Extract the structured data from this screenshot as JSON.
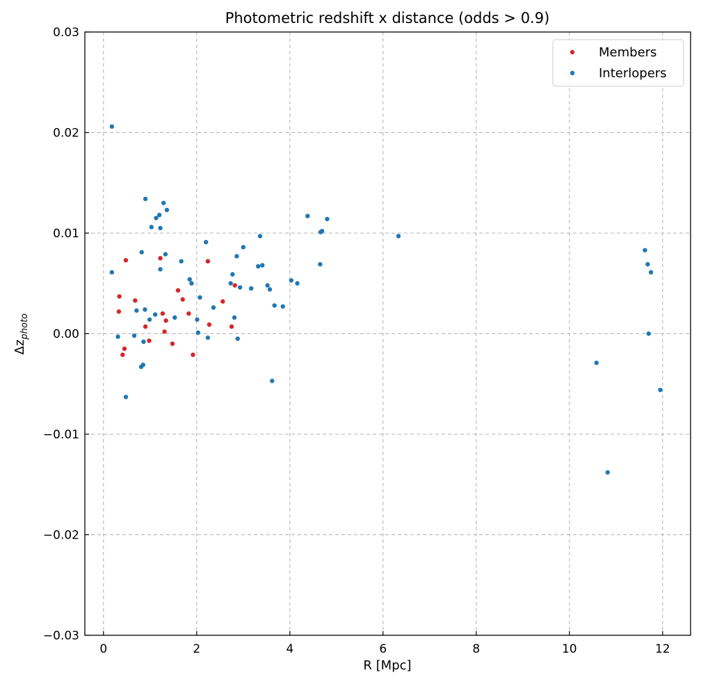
{
  "chart_data": {
    "type": "scatter",
    "title": "Photometric redshift x distance (odds > 0.9)",
    "xlabel": "R [Mpc]",
    "ylabel_main": "Δz",
    "ylabel_sub": "photo",
    "xlim": [
      -0.4,
      12.6
    ],
    "ylim": [
      -0.03,
      0.03
    ],
    "xticks": [
      0,
      2,
      4,
      6,
      8,
      10,
      12
    ],
    "yticks": [
      -0.03,
      -0.02,
      -0.01,
      0.0,
      0.01,
      0.02,
      0.03
    ],
    "xtick_labels": [
      "0",
      "2",
      "4",
      "6",
      "8",
      "10",
      "12"
    ],
    "ytick_labels": [
      "−0.03",
      "−0.02",
      "−0.01",
      "0.00",
      "0.01",
      "0.02",
      "0.03"
    ],
    "grid": true,
    "legend_position": "top-right",
    "series": [
      {
        "name": "Members",
        "color": "#d62728",
        "points": [
          [
            0.48,
            0.0073
          ],
          [
            0.34,
            0.0037
          ],
          [
            0.33,
            0.0022
          ],
          [
            0.68,
            0.0033
          ],
          [
            0.41,
            -0.0021
          ],
          [
            0.45,
            -0.0015
          ],
          [
            0.9,
            0.0007
          ],
          [
            0.98,
            -0.0007
          ],
          [
            1.22,
            0.0075
          ],
          [
            1.27,
            0.002
          ],
          [
            1.31,
            0.0002
          ],
          [
            1.34,
            0.0013
          ],
          [
            1.48,
            -0.001
          ],
          [
            1.6,
            0.0043
          ],
          [
            1.7,
            0.0034
          ],
          [
            1.83,
            0.002
          ],
          [
            1.92,
            -0.0021
          ],
          [
            2.24,
            0.0072
          ],
          [
            2.27,
            0.0009
          ],
          [
            2.56,
            0.0032
          ],
          [
            2.75,
            0.0007
          ],
          [
            2.82,
            0.0048
          ]
        ]
      },
      {
        "name": "Interlopers",
        "color": "#1f77b4",
        "points": [
          [
            0.18,
            0.0206
          ],
          [
            0.18,
            0.0061
          ],
          [
            0.31,
            -0.0003
          ],
          [
            0.48,
            -0.0063
          ],
          [
            0.66,
            -0.0002
          ],
          [
            0.71,
            0.0023
          ],
          [
            0.82,
            0.0081
          ],
          [
            0.81,
            -0.0033
          ],
          [
            0.85,
            -0.0031
          ],
          [
            0.86,
            -0.0008
          ],
          [
            0.9,
            0.0134
          ],
          [
            0.89,
            0.0024
          ],
          [
            0.99,
            0.0014
          ],
          [
            1.03,
            0.0106
          ],
          [
            1.11,
            0.0019
          ],
          [
            1.13,
            0.0115
          ],
          [
            1.2,
            0.0118
          ],
          [
            1.22,
            0.0105
          ],
          [
            1.22,
            0.0064
          ],
          [
            1.29,
            0.013
          ],
          [
            1.33,
            0.0079
          ],
          [
            1.36,
            0.0123
          ],
          [
            1.53,
            0.0016
          ],
          [
            1.67,
            0.0072
          ],
          [
            1.85,
            0.0054
          ],
          [
            1.89,
            0.005
          ],
          [
            2.01,
            0.0014
          ],
          [
            2.03,
            0.0001
          ],
          [
            2.07,
            0.0036
          ],
          [
            2.2,
            0.0091
          ],
          [
            2.24,
            -0.0004
          ],
          [
            2.36,
            0.0026
          ],
          [
            2.73,
            0.005
          ],
          [
            2.77,
            0.0059
          ],
          [
            2.81,
            0.0016
          ],
          [
            2.86,
            0.0077
          ],
          [
            2.88,
            -0.0005
          ],
          [
            2.93,
            0.0046
          ],
          [
            3.0,
            0.0086
          ],
          [
            3.17,
            0.0045
          ],
          [
            3.32,
            0.0067
          ],
          [
            3.36,
            0.0097
          ],
          [
            3.41,
            0.0068
          ],
          [
            3.52,
            0.0048
          ],
          [
            3.57,
            0.0044
          ],
          [
            3.62,
            -0.0047
          ],
          [
            3.67,
            0.0028
          ],
          [
            3.85,
            0.0027
          ],
          [
            4.03,
            0.0053
          ],
          [
            4.16,
            0.005
          ],
          [
            4.38,
            0.0117
          ],
          [
            4.65,
            0.0069
          ],
          [
            4.66,
            0.0101
          ],
          [
            4.69,
            0.0102
          ],
          [
            4.8,
            0.0114
          ],
          [
            6.33,
            0.0097
          ],
          [
            10.58,
            -0.0029
          ],
          [
            10.82,
            -0.0138
          ],
          [
            11.62,
            0.0083
          ],
          [
            11.68,
            0.0069
          ],
          [
            11.7,
            0.0
          ],
          [
            11.75,
            0.0061
          ],
          [
            11.95,
            -0.0056
          ]
        ]
      }
    ]
  }
}
